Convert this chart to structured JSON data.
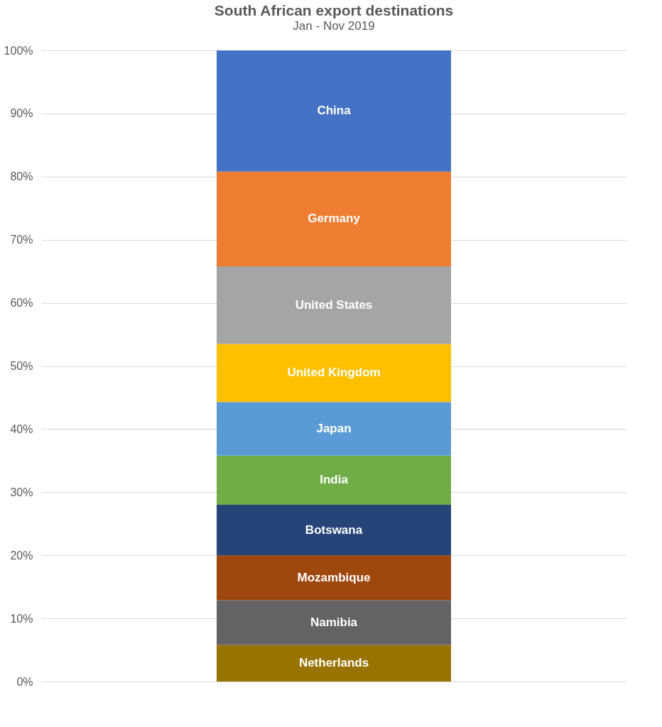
{
  "chart_data": {
    "type": "bar",
    "stacked": true,
    "title": "South African export destinations",
    "subtitle": "Jan - Nov 2019",
    "categories": [
      null
    ],
    "series": [
      {
        "name": "Netherlands",
        "color": "#997300",
        "values": [
          5.8
        ]
      },
      {
        "name": "Namibia",
        "color": "#636363",
        "values": [
          7.1
        ]
      },
      {
        "name": "Mozambique",
        "color": "#9e480e",
        "values": [
          7.1
        ]
      },
      {
        "name": "Botswana",
        "color": "#264478",
        "values": [
          8.0
        ]
      },
      {
        "name": "India",
        "color": "#70ad47",
        "values": [
          7.8
        ]
      },
      {
        "name": "Japan",
        "color": "#5b9bd5",
        "values": [
          8.5
        ]
      },
      {
        "name": "United Kingdom",
        "color": "#ffc000",
        "values": [
          9.2
        ]
      },
      {
        "name": "United States",
        "color": "#a5a5a5",
        "values": [
          12.3
        ]
      },
      {
        "name": "Germany",
        "color": "#ed7d31",
        "values": [
          15.0
        ]
      },
      {
        "name": "China",
        "color": "#4472c4",
        "values": [
          19.2
        ]
      }
    ],
    "ylim": [
      0,
      100
    ],
    "yticks": [
      {
        "value": 0,
        "label": "0%"
      },
      {
        "value": 10,
        "label": "10%"
      },
      {
        "value": 20,
        "label": "20%"
      },
      {
        "value": 30,
        "label": "30%"
      },
      {
        "value": 40,
        "label": "40%"
      },
      {
        "value": 50,
        "label": "50%"
      },
      {
        "value": 60,
        "label": "60%"
      },
      {
        "value": 70,
        "label": "70%"
      },
      {
        "value": 80,
        "label": "80%"
      },
      {
        "value": 90,
        "label": "90%"
      },
      {
        "value": 100,
        "label": "100%"
      }
    ],
    "grid": "y",
    "legend": false
  }
}
